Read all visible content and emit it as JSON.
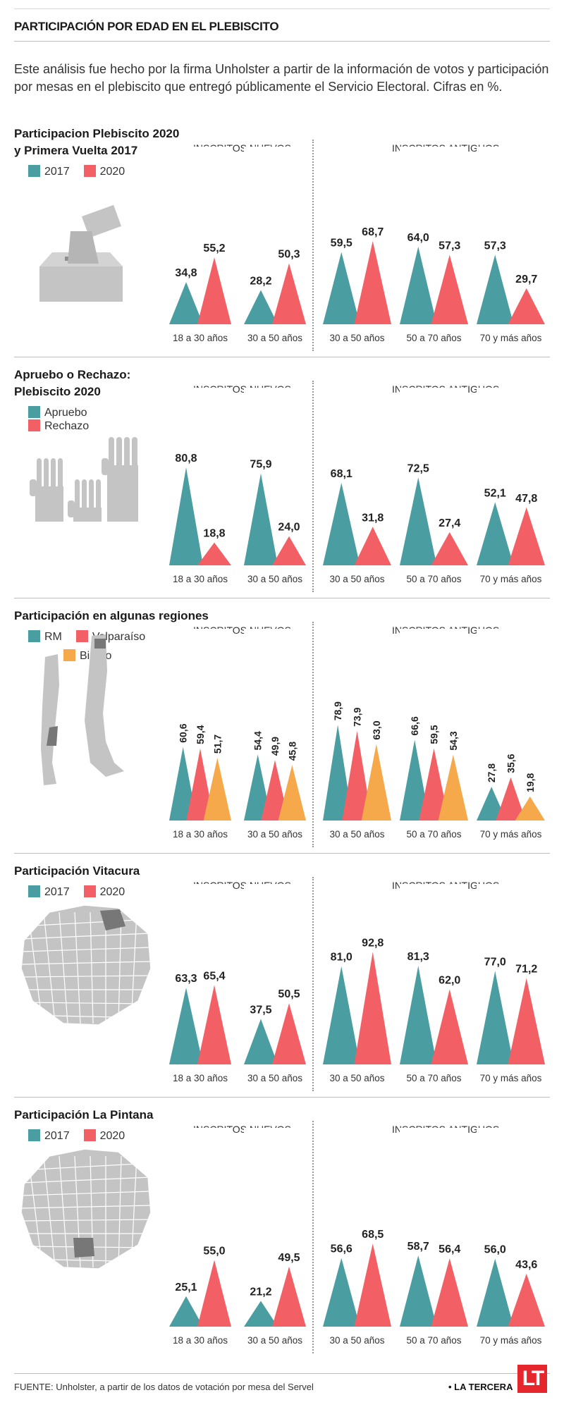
{
  "header": {
    "title": "PARTICIPACIÓN POR EDAD EN EL PLEBISCITO",
    "intro": "Este análisis fue hecho por la firma Unholster a partir de la información de votos y participación por mesas en el plebiscito que entregó públicamente el Servicio Electoral. Cifras en %."
  },
  "groups": {
    "new": "INSCRITOS NUEVOS",
    "old": "INSCRITOS ANTIGUOS"
  },
  "colors": {
    "teal": "#4a9ea1",
    "red": "#f26065",
    "orange": "#f5a94a",
    "grey": "#c4c4c4",
    "dark": "#777777"
  },
  "chart_data": [
    {
      "type": "bar",
      "title": "Participacion Plebiscito 2020 y Primera Vuelta 2017",
      "title_lines": [
        "Participacion Plebiscito 2020",
        "y Primera Vuelta 2017"
      ],
      "categories": [
        "18 a 30 años",
        "30 a 50 años",
        "30 a 50 años",
        "50 a 70 años",
        "70 y más años"
      ],
      "category_groups": [
        "INSCRITOS NUEVOS",
        "INSCRITOS NUEVOS",
        "INSCRITOS ANTIGUOS",
        "INSCRITOS ANTIGUOS",
        "INSCRITOS ANTIGUOS"
      ],
      "series": [
        {
          "name": "2017",
          "color": "#4a9ea1",
          "values": [
            34.8,
            28.2,
            59.5,
            64.0,
            57.3
          ],
          "labels": [
            "34,8",
            "28,2",
            "59,5",
            "64,0",
            "57,3"
          ]
        },
        {
          "name": "2020",
          "color": "#f26065",
          "values": [
            55.2,
            50.3,
            68.7,
            57.3,
            29.7
          ],
          "labels": [
            "55,2",
            "50,3",
            "68,7",
            "57,3",
            "29,7"
          ]
        }
      ],
      "legend": "top-left",
      "icon": "ballot-box-icon"
    },
    {
      "type": "bar",
      "title": "Apruebo o Rechazo: Plebiscito 2020",
      "title_lines": [
        "Apruebo o Rechazo:",
        "Plebiscito 2020"
      ],
      "categories": [
        "18 a 30 años",
        "30 a 50 años",
        "30 a 50 años",
        "50 a 70 años",
        "70 y más años"
      ],
      "category_groups": [
        "INSCRITOS NUEVOS",
        "INSCRITOS NUEVOS",
        "INSCRITOS ANTIGUOS",
        "INSCRITOS ANTIGUOS",
        "INSCRITOS ANTIGUOS"
      ],
      "series": [
        {
          "name": "Apruebo",
          "color": "#4a9ea1",
          "values": [
            80.8,
            75.9,
            68.1,
            72.5,
            52.1
          ],
          "labels": [
            "80,8",
            "75,9",
            "68,1",
            "72,5",
            "52,1"
          ]
        },
        {
          "name": "Rechazo",
          "color": "#f26065",
          "values": [
            18.8,
            24.0,
            31.8,
            27.4,
            47.8
          ],
          "labels": [
            "18,8",
            "24,0",
            "31,8",
            "27,4",
            "47,8"
          ]
        }
      ],
      "legend": "top-left",
      "icon": "raised-hands-icon"
    },
    {
      "type": "bar",
      "title": "Participación en algunas regiones",
      "title_lines": [
        "Participación en algunas regiones"
      ],
      "categories": [
        "18 a 30 años",
        "30 a 50 años",
        "30 a 50 años",
        "50 a 70 años",
        "70 y más años"
      ],
      "category_groups": [
        "INSCRITOS NUEVOS",
        "INSCRITOS NUEVOS",
        "INSCRITOS ANTIGUOS",
        "INSCRITOS ANTIGUOS",
        "INSCRITOS ANTIGUOS"
      ],
      "series": [
        {
          "name": "RM",
          "color": "#4a9ea1",
          "values": [
            60.6,
            54.4,
            78.9,
            66.6,
            27.8
          ],
          "labels": [
            "60,6",
            "54,4",
            "78,9",
            "66,6",
            "27,8"
          ]
        },
        {
          "name": "Valparaíso",
          "color": "#f26065",
          "values": [
            59.4,
            49.9,
            73.9,
            59.5,
            35.6
          ],
          "labels": [
            "59,4",
            "49,9",
            "73,9",
            "59,5",
            "35,6"
          ]
        },
        {
          "name": "Biobío",
          "color": "#f5a94a",
          "values": [
            51.7,
            45.8,
            63.0,
            54.3,
            19.8
          ],
          "labels": [
            "51,7",
            "45,8",
            "63,0",
            "54,3",
            "19,8"
          ]
        }
      ],
      "legend": "top-left",
      "icon": "chile-map-icon"
    },
    {
      "type": "bar",
      "title": "Participación Vitacura",
      "title_lines": [
        "Participación Vitacura"
      ],
      "categories": [
        "18 a 30 años",
        "30 a 50 años",
        "30 a 50 años",
        "50 a 70 años",
        "70 y más años"
      ],
      "category_groups": [
        "INSCRITOS NUEVOS",
        "INSCRITOS NUEVOS",
        "INSCRITOS ANTIGUOS",
        "INSCRITOS ANTIGUOS",
        "INSCRITOS ANTIGUOS"
      ],
      "series": [
        {
          "name": "2017",
          "color": "#4a9ea1",
          "values": [
            63.3,
            37.5,
            81.0,
            81.3,
            77.0
          ],
          "labels": [
            "63,3",
            "37,5",
            "81,0",
            "81,3",
            "77,0"
          ]
        },
        {
          "name": "2020",
          "color": "#f26065",
          "values": [
            65.4,
            50.5,
            92.8,
            62.0,
            71.2
          ],
          "labels": [
            "65,4",
            "50,5",
            "92,8",
            "62,0",
            "71,2"
          ]
        }
      ],
      "legend": "top-left",
      "icon": "santiago-map-icon"
    },
    {
      "type": "bar",
      "title": "Participación La Pintana",
      "title_lines": [
        "Participación La Pintana"
      ],
      "categories": [
        "18 a 30 años",
        "30 a 50 años",
        "30 a 50 años",
        "50 a 70 años",
        "70 y más años"
      ],
      "category_groups": [
        "INSCRITOS NUEVOS",
        "INSCRITOS NUEVOS",
        "INSCRITOS ANTIGUOS",
        "INSCRITOS ANTIGUOS",
        "INSCRITOS ANTIGUOS"
      ],
      "series": [
        {
          "name": "2017",
          "color": "#4a9ea1",
          "values": [
            25.1,
            21.2,
            56.6,
            58.7,
            56.0
          ],
          "labels": [
            "25,1",
            "21,2",
            "56,6",
            "58,7",
            "56,0"
          ]
        },
        {
          "name": "2020",
          "color": "#f26065",
          "values": [
            55.0,
            49.5,
            68.5,
            56.4,
            43.6
          ],
          "labels": [
            "55,0",
            "49,5",
            "68,5",
            "56,4",
            "43,6"
          ]
        }
      ],
      "legend": "top-left",
      "icon": "santiago-map-icon"
    }
  ],
  "footer": {
    "source": "FUENTE: Unholster, a partir de los datos de votación por mesa del Servel",
    "brand": "• LA TERCERA",
    "logo": "LT"
  }
}
